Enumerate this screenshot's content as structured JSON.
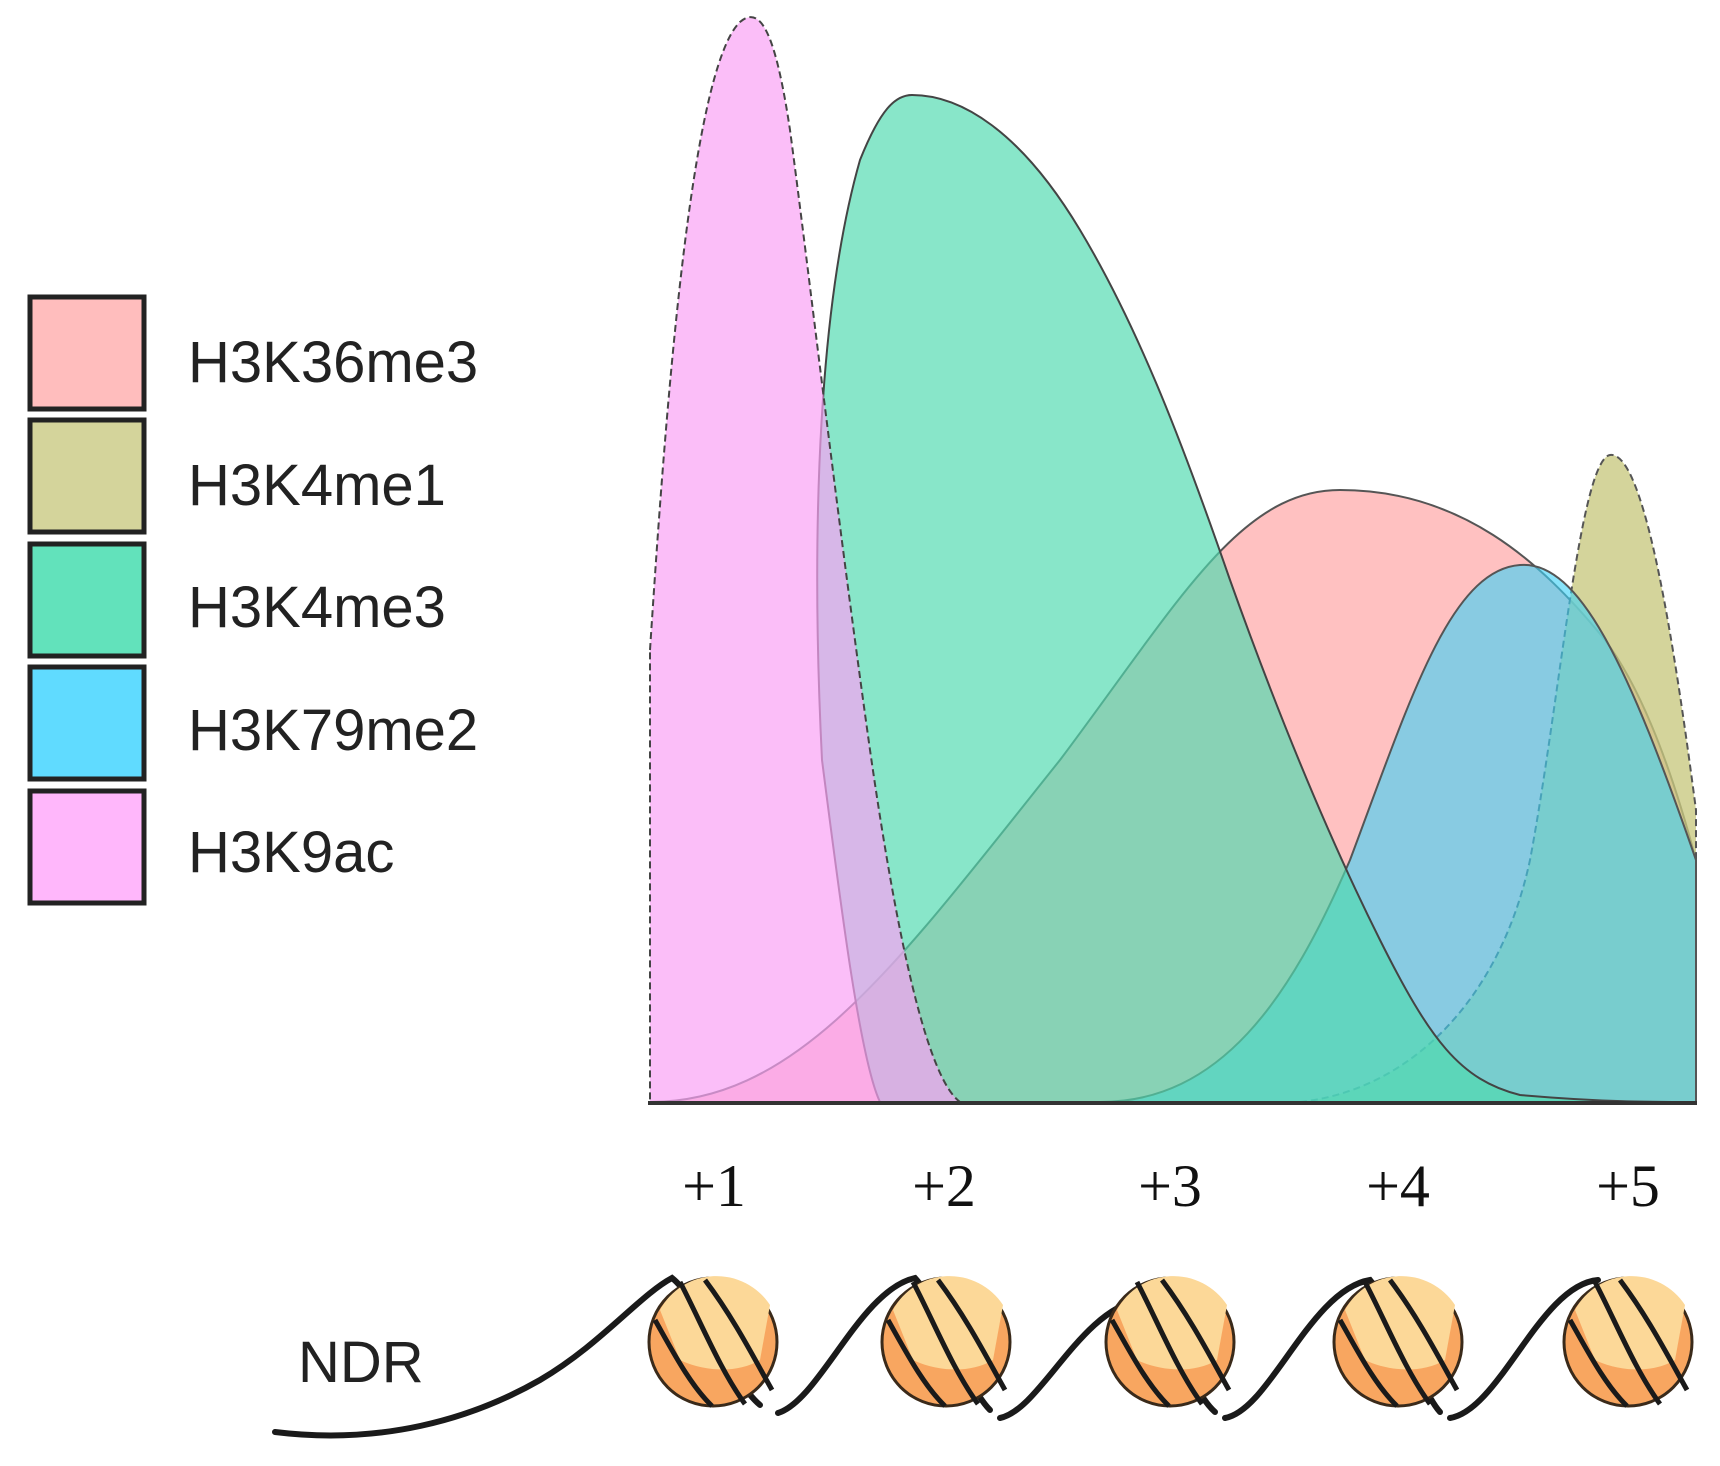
{
  "legend": [
    {
      "label": "H3K36me3",
      "color": "#ffbdbd"
    },
    {
      "label": "H3K4me1",
      "color": "#d4d49b"
    },
    {
      "label": "H3K4me3",
      "color": "#62e2bb"
    },
    {
      "label": "H3K79me2",
      "color": "#60dbff"
    },
    {
      "label": "H3K9ac",
      "color": "#ffb7fb"
    }
  ],
  "positions": [
    "+1",
    "+2",
    "+3",
    "+4",
    "+5"
  ],
  "ndr_label": "NDR",
  "nucleosome_colors": {
    "light": "#fcd898",
    "dark": "#f8a660",
    "stroke": "#3a2a1a"
  }
}
